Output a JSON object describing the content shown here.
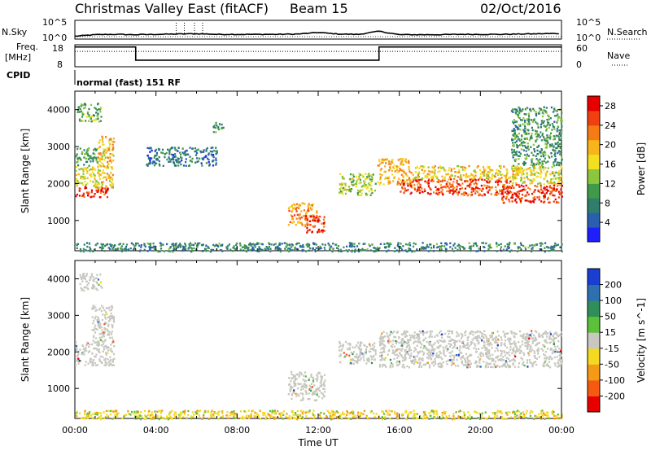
{
  "header": {
    "station": "Christmas Valley East (fitACF)",
    "beam": "Beam 15",
    "date": "02/Oct/2016"
  },
  "strip_labels": {
    "nsky": "N.Sky",
    "nsearch": "N.Search",
    "freq_line1": "Freq.",
    "freq_line2": "[MHz]",
    "nave": "Nave",
    "cpid": "CPID",
    "cpid_value": "normal (fast) 151 RF",
    "noise_ticks": [
      "10^5",
      "10^0"
    ],
    "freq_ticks": [
      "18",
      "8"
    ],
    "nave_ticks": [
      "60",
      "0"
    ]
  },
  "chart_data": [
    {
      "type": "line",
      "name": "noise",
      "x": [
        0,
        1,
        2,
        3,
        4,
        5,
        6,
        7,
        8,
        9,
        10,
        11,
        12,
        13,
        14,
        15,
        16,
        17,
        18,
        19,
        20,
        21,
        22,
        23,
        24
      ],
      "y_sky": [
        0.4,
        0.9,
        1.0,
        0.9,
        1.0,
        1.1,
        1.2,
        1.0,
        1.0,
        1.0,
        1.0,
        1.1,
        1.6,
        1.1,
        1.0,
        2.0,
        0.9,
        0.9,
        0.9,
        1.0,
        1.0,
        1.0,
        1.1,
        1.2,
        1.3
      ],
      "xlim": [
        0,
        24
      ],
      "yticks": [
        "10^5",
        "10^0"
      ]
    },
    {
      "type": "line",
      "name": "frequency",
      "segments": [
        {
          "x0": 0,
          "x1": 3,
          "freq_mhz": 17,
          "nave": 42
        },
        {
          "x0": 3,
          "x1": 15,
          "freq_mhz": 11,
          "nave": 42
        },
        {
          "x0": 15,
          "x1": 24,
          "freq_mhz": 17,
          "nave": 42
        }
      ],
      "xlim": [
        0,
        24
      ],
      "ylim_freq": [
        8,
        18
      ],
      "ylim_nave": [
        0,
        60
      ]
    },
    {
      "type": "heatmap",
      "name": "power",
      "ylabel": "Slant Range [km]",
      "xlim": [
        0,
        24
      ],
      "ylim": [
        180,
        4500
      ],
      "yticks": [
        1000,
        2000,
        3000,
        4000
      ],
      "colorbar": {
        "label": "Power [dB]",
        "ticks": [
          4,
          8,
          12,
          16,
          20,
          24,
          28
        ],
        "range": [
          0,
          30
        ],
        "colors": [
          "#1e1eff",
          "#2a5fb0",
          "#2f7d6a",
          "#3f9a4a",
          "#8cc63c",
          "#f0e020",
          "#f7b51a",
          "#f57c15",
          "#f04010",
          "#e80000"
        ]
      },
      "regions": [
        {
          "t0": 0.0,
          "t1": 1.6,
          "r0": 1650,
          "r1": 1950,
          "v": 28
        },
        {
          "t0": 0.0,
          "t1": 1.2,
          "r0": 1950,
          "r1": 2500,
          "v": 17
        },
        {
          "t0": 1.1,
          "t1": 1.9,
          "r0": 1900,
          "r1": 3300,
          "v": 19
        },
        {
          "t0": 0.0,
          "t1": 1.1,
          "r0": 2500,
          "r1": 3000,
          "v": 10
        },
        {
          "t0": 0.1,
          "t1": 1.3,
          "r0": 3700,
          "r1": 4200,
          "v": 11
        },
        {
          "t0": 10.5,
          "t1": 11.9,
          "r0": 900,
          "r1": 1500,
          "v": 22
        },
        {
          "t0": 11.3,
          "t1": 12.3,
          "r0": 700,
          "r1": 1150,
          "v": 28
        },
        {
          "t0": 13.0,
          "t1": 14.8,
          "r0": 1700,
          "r1": 2300,
          "v": 14
        },
        {
          "t0": 14.9,
          "t1": 16.5,
          "r0": 2000,
          "r1": 2700,
          "v": 20
        },
        {
          "t0": 16.0,
          "t1": 21.5,
          "r0": 1700,
          "r1": 2150,
          "v": 26
        },
        {
          "t0": 16.5,
          "t1": 22.0,
          "r0": 2150,
          "r1": 2500,
          "v": 18
        },
        {
          "t0": 21.0,
          "t1": 24.0,
          "r0": 1500,
          "r1": 2000,
          "v": 28
        },
        {
          "t0": 21.5,
          "t1": 24.0,
          "r0": 2000,
          "r1": 2500,
          "v": 16
        },
        {
          "t0": 21.5,
          "t1": 24.0,
          "r0": 2500,
          "r1": 4100,
          "v": 9
        },
        {
          "t0": 0.0,
          "t1": 24.0,
          "r0": 180,
          "r1": 420,
          "v": 7
        },
        {
          "t0": 3.5,
          "t1": 7.0,
          "r0": 2500,
          "r1": 3000,
          "v": 6
        },
        {
          "t0": 6.8,
          "t1": 7.3,
          "r0": 3400,
          "r1": 3700,
          "v": 8
        }
      ]
    },
    {
      "type": "heatmap",
      "name": "velocity",
      "ylabel": "Slant Range [km]",
      "xlabel": "Time UT",
      "xlim": [
        0,
        24
      ],
      "xticks": [
        "00:00",
        "04:00",
        "08:00",
        "12:00",
        "16:00",
        "20:00",
        "00:00"
      ],
      "ylim": [
        180,
        4500
      ],
      "yticks": [
        1000,
        2000,
        3000,
        4000
      ],
      "colorbar": {
        "label": "Velocity [m s^-1]",
        "ticks": [
          200,
          100,
          50,
          15,
          -15,
          -50,
          -100,
          -200
        ],
        "colors": [
          "#1a3ecf",
          "#2e6fb0",
          "#2f8f5a",
          "#5cc03a",
          "#c8c8c0",
          "#f5d820",
          "#f59a15",
          "#f55a10",
          "#e80000"
        ]
      },
      "regions": [
        {
          "t0": 0.0,
          "t1": 1.9,
          "r0": 1650,
          "r1": 2300,
          "v": "gray"
        },
        {
          "t0": 0.8,
          "t1": 1.9,
          "r0": 2300,
          "r1": 3300,
          "v": "gray"
        },
        {
          "t0": 0.2,
          "t1": 1.3,
          "r0": 3700,
          "r1": 4200,
          "v": "gray"
        },
        {
          "t0": 10.5,
          "t1": 12.3,
          "r0": 700,
          "r1": 1500,
          "v": "gray"
        },
        {
          "t0": 13.0,
          "t1": 14.8,
          "r0": 1700,
          "r1": 2300,
          "v": "gray"
        },
        {
          "t0": 15.0,
          "t1": 24.0,
          "r0": 1600,
          "r1": 2600,
          "v": "gray"
        },
        {
          "t0": 0.0,
          "t1": 24.0,
          "r0": 180,
          "r1": 420,
          "v": "orange"
        }
      ]
    }
  ]
}
